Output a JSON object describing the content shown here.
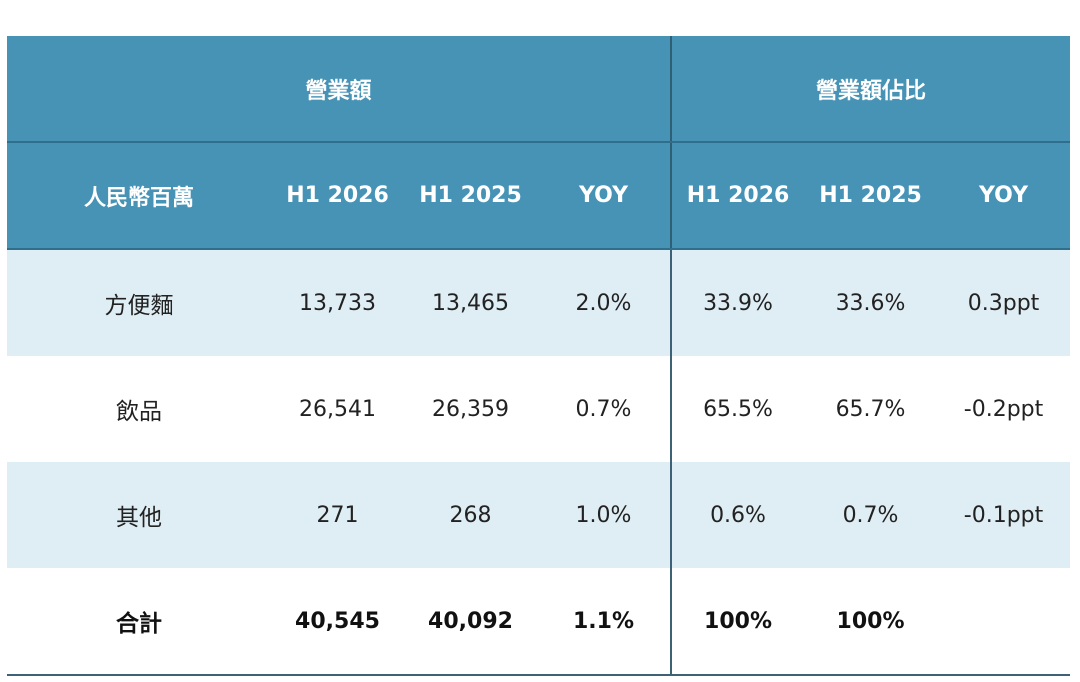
{
  "group_headers": {
    "revenue": "營業額",
    "share": "營業額佔比"
  },
  "columns": [
    "人民幣百萬",
    "H1 2026",
    "H1 2025",
    "YOY",
    "H1 2026",
    "H1 2025",
    "YOY"
  ],
  "rows": [
    {
      "label": "方便麵",
      "values": [
        "13,733",
        "13,465",
        "2.0%",
        "33.9%",
        "33.6%",
        "0.3ppt"
      ]
    },
    {
      "label": "飲品",
      "values": [
        "26,541",
        "26,359",
        "0.7%",
        "65.5%",
        "65.7%",
        "-0.2ppt"
      ]
    },
    {
      "label": "其他",
      "values": [
        "271",
        "268",
        "1.0%",
        "0.6%",
        "0.7%",
        "-0.1ppt"
      ]
    },
    {
      "label": "合計",
      "values": [
        "40,545",
        "40,092",
        "1.1%",
        "100%",
        "100%",
        ""
      ]
    }
  ],
  "colors": {
    "header_bg": "#4693b6",
    "shaded_row_bg": "#dfedf4",
    "divider": "#3e6275"
  }
}
